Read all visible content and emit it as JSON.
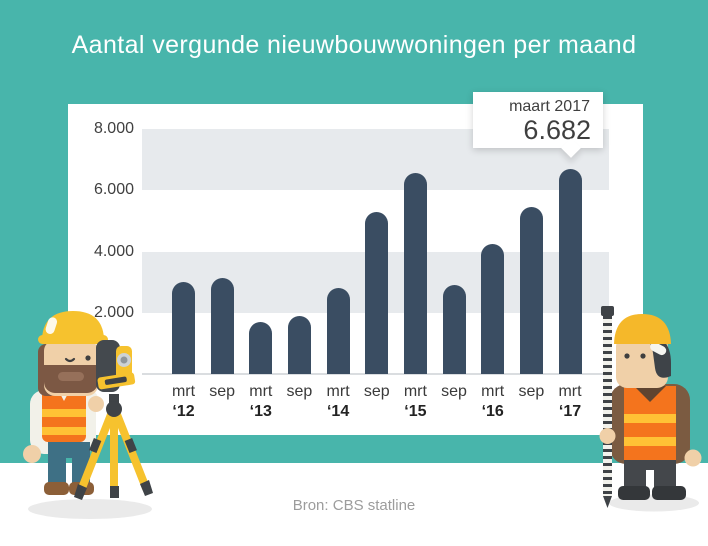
{
  "page": {
    "background_color": "#FFFFFF",
    "hero_color": "#48B5AB",
    "source_text": "Bron: CBS statline"
  },
  "chart_data": {
    "type": "bar",
    "title": "Aantal vergunde nieuwbouwwoningen per maand",
    "categories": [
      {
        "month": "mrt",
        "year": "‘12"
      },
      {
        "month": "sep",
        "year": ""
      },
      {
        "month": "mrt",
        "year": "‘13"
      },
      {
        "month": "sep",
        "year": ""
      },
      {
        "month": "mrt",
        "year": "‘14"
      },
      {
        "month": "sep",
        "year": ""
      },
      {
        "month": "mrt",
        "year": "‘15"
      },
      {
        "month": "sep",
        "year": ""
      },
      {
        "month": "mrt",
        "year": "‘16"
      },
      {
        "month": "sep",
        "year": ""
      },
      {
        "month": "mrt",
        "year": "‘17"
      }
    ],
    "values": [
      3000,
      3150,
      1700,
      1900,
      2800,
      5300,
      6550,
      2900,
      4250,
      5450,
      6682
    ],
    "ylim": [
      0,
      8000
    ],
    "y_ticks": [
      {
        "value": 2000,
        "label": "2.000"
      },
      {
        "value": 4000,
        "label": "4.000"
      },
      {
        "value": 6000,
        "label": "6.000"
      },
      {
        "value": 8000,
        "label": "8.000"
      }
    ],
    "grid_bands": [
      [
        2000,
        4000
      ],
      [
        6000,
        8000
      ]
    ],
    "legend": "none",
    "bar_color": "#3A4D62",
    "band_color": "#E7EAED",
    "annotation": {
      "index": 10,
      "label": "maart 2017",
      "value_text": "6.682"
    }
  },
  "illustrations": {
    "left": "surveyor-with-theodolite-tripod",
    "right": "worker-with-leveling-rod",
    "palette": {
      "hard_hat": "#F6C22E",
      "vest": "#F4741D",
      "vest_stripe": "#FFC235",
      "skin": "#F0D0A8",
      "jeans": "#3E7085",
      "dark_gray": "#3F4347",
      "brown": "#7B5B41"
    }
  }
}
